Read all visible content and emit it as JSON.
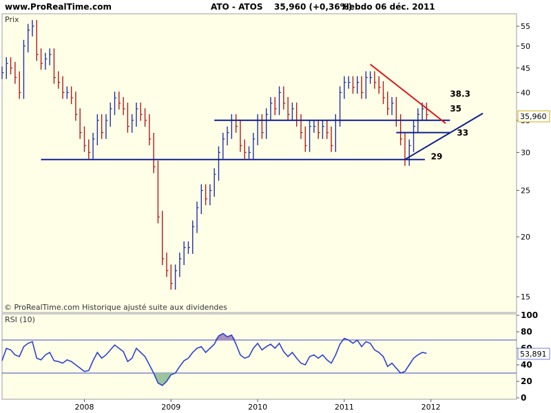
{
  "header": {
    "site": "www.ProRealTime.com",
    "ticker": "ATO - ATOS",
    "price": "35,960 (+0,36%)",
    "period": "Hebdo  06 déc. 2011"
  },
  "price_panel": {
    "label": "Prix",
    "footer": "© ProRealTime.com  Historique ajusté suite aux dividendes",
    "last_value": "35,960"
  },
  "rsi_panel": {
    "label": "RSI (10)",
    "last_value": "53,891"
  },
  "colors": {
    "price_bars": "#1f2fa0",
    "down_bars": "#b01818",
    "support_lines": "#0f1f8a",
    "downtrend": "#e01414",
    "rsi_line": "#2a3fd0",
    "overbought_fill": "#a98fb8",
    "oversold_fill": "#9cc49c",
    "panel_bg": "#ffffe8"
  },
  "chart_data": [
    {
      "type": "bar",
      "scale": "log",
      "ylim": [
        14,
        58
      ],
      "y_ticks": [
        15,
        20,
        25,
        30,
        35,
        40,
        45,
        50,
        55
      ],
      "x_tick_labels": [
        "2008",
        "2009",
        "2010",
        "2011",
        "2012"
      ],
      "x_tick_dates": [
        2008.0,
        2009.0,
        2010.0,
        2011.0,
        2012.0
      ],
      "xlim": [
        2007.05,
        2012.75
      ],
      "series": [
        {
          "points": [
            [
              2007.05,
              44
            ],
            [
              2007.1,
              46
            ],
            [
              2007.15,
              45
            ],
            [
              2007.2,
              43
            ],
            [
              2007.25,
              40
            ],
            [
              2007.3,
              50
            ],
            [
              2007.35,
              54
            ],
            [
              2007.4,
              55
            ],
            [
              2007.45,
              48
            ],
            [
              2007.5,
              46
            ],
            [
              2007.55,
              47
            ],
            [
              2007.6,
              48
            ],
            [
              2007.65,
              43
            ],
            [
              2007.7,
              42
            ],
            [
              2007.75,
              40
            ],
            [
              2007.8,
              40
            ],
            [
              2007.85,
              39
            ],
            [
              2007.9,
              36
            ],
            [
              2007.95,
              33
            ],
            [
              2008.0,
              31
            ],
            [
              2008.05,
              30
            ],
            [
              2008.1,
              32
            ],
            [
              2008.15,
              35
            ],
            [
              2008.2,
              33
            ],
            [
              2008.25,
              35
            ],
            [
              2008.3,
              37
            ],
            [
              2008.35,
              39
            ],
            [
              2008.4,
              38
            ],
            [
              2008.45,
              37
            ],
            [
              2008.5,
              34
            ],
            [
              2008.55,
              35
            ],
            [
              2008.6,
              37
            ],
            [
              2008.65,
              36
            ],
            [
              2008.7,
              35
            ],
            [
              2008.75,
              32
            ],
            [
              2008.8,
              28
            ],
            [
              2008.85,
              22
            ],
            [
              2008.9,
              18
            ],
            [
              2008.95,
              17
            ],
            [
              2009.0,
              16
            ],
            [
              2009.05,
              17
            ],
            [
              2009.1,
              18
            ],
            [
              2009.15,
              19
            ],
            [
              2009.2,
              19
            ],
            [
              2009.25,
              21
            ],
            [
              2009.3,
              23
            ],
            [
              2009.35,
              25
            ],
            [
              2009.4,
              24
            ],
            [
              2009.45,
              25
            ],
            [
              2009.5,
              27
            ],
            [
              2009.55,
              30
            ],
            [
              2009.6,
              32
            ],
            [
              2009.65,
              33
            ],
            [
              2009.7,
              35
            ],
            [
              2009.75,
              34
            ],
            [
              2009.8,
              31
            ],
            [
              2009.85,
              30
            ],
            [
              2009.9,
              30
            ],
            [
              2009.95,
              32
            ],
            [
              2010.0,
              35
            ],
            [
              2010.05,
              33
            ],
            [
              2010.1,
              36
            ],
            [
              2010.15,
              38
            ],
            [
              2010.2,
              37
            ],
            [
              2010.25,
              40
            ],
            [
              2010.3,
              38
            ],
            [
              2010.35,
              36
            ],
            [
              2010.4,
              37
            ],
            [
              2010.45,
              35
            ],
            [
              2010.5,
              33
            ],
            [
              2010.55,
              31
            ],
            [
              2010.6,
              34
            ],
            [
              2010.65,
              34
            ],
            [
              2010.7,
              33
            ],
            [
              2010.75,
              34
            ],
            [
              2010.8,
              33
            ],
            [
              2010.85,
              31
            ],
            [
              2010.9,
              35
            ],
            [
              2010.95,
              40
            ],
            [
              2011.0,
              42
            ],
            [
              2011.05,
              42
            ],
            [
              2011.1,
              41
            ],
            [
              2011.15,
              42
            ],
            [
              2011.2,
              40
            ],
            [
              2011.25,
              43
            ],
            [
              2011.3,
              43
            ],
            [
              2011.35,
              42
            ],
            [
              2011.4,
              41
            ],
            [
              2011.45,
              39
            ],
            [
              2011.5,
              37
            ],
            [
              2011.55,
              38
            ],
            [
              2011.6,
              35
            ],
            [
              2011.65,
              32
            ],
            [
              2011.7,
              29
            ],
            [
              2011.75,
              31
            ],
            [
              2011.8,
              34
            ],
            [
              2011.85,
              36
            ],
            [
              2011.9,
              37
            ],
            [
              2011.95,
              35.96
            ]
          ]
        }
      ],
      "annotations": [
        {
          "text": "38.3",
          "x": 2012.22,
          "y": 39.2
        },
        {
          "text": "35",
          "x": 2012.22,
          "y": 36.5
        },
        {
          "text": "33",
          "x": 2012.3,
          "y": 32.5
        },
        {
          "text": "29",
          "x": 2012.0,
          "y": 29.0
        }
      ],
      "lines": [
        {
          "name": "support-35",
          "x1": 2009.5,
          "y1": 35,
          "x2": 2012.22,
          "y2": 35,
          "color": "#0f1f8a"
        },
        {
          "name": "support-33",
          "x1": 2011.6,
          "y1": 33,
          "x2": 2012.22,
          "y2": 33,
          "color": "#0f1f8a"
        },
        {
          "name": "support-29",
          "x1": 2007.5,
          "y1": 29,
          "x2": 2011.93,
          "y2": 29,
          "color": "#0f1f8a"
        },
        {
          "name": "uptrend",
          "x1": 2011.7,
          "y1": 29,
          "x2": 2012.6,
          "y2": 36.2,
          "color": "#0f1f8a"
        },
        {
          "name": "downtrend",
          "x1": 2011.3,
          "y1": 45.8,
          "x2": 2012.17,
          "y2": 34.5,
          "color": "#e01414"
        }
      ]
    },
    {
      "type": "line",
      "title": "RSI (10)",
      "ylim": [
        0,
        100
      ],
      "y_ticks": [
        0,
        20,
        40,
        60,
        80,
        100
      ],
      "overbought": 70,
      "oversold": 30,
      "values": [
        [
          2007.05,
          45
        ],
        [
          2007.1,
          60
        ],
        [
          2007.15,
          58
        ],
        [
          2007.2,
          52
        ],
        [
          2007.25,
          50
        ],
        [
          2007.3,
          62
        ],
        [
          2007.35,
          66
        ],
        [
          2007.4,
          68
        ],
        [
          2007.45,
          48
        ],
        [
          2007.5,
          46
        ],
        [
          2007.55,
          52
        ],
        [
          2007.6,
          55
        ],
        [
          2007.65,
          45
        ],
        [
          2007.7,
          44
        ],
        [
          2007.75,
          42
        ],
        [
          2007.8,
          46
        ],
        [
          2007.85,
          44
        ],
        [
          2007.9,
          40
        ],
        [
          2007.95,
          36
        ],
        [
          2008.0,
          32
        ],
        [
          2008.05,
          33
        ],
        [
          2008.1,
          45
        ],
        [
          2008.15,
          55
        ],
        [
          2008.2,
          48
        ],
        [
          2008.25,
          52
        ],
        [
          2008.3,
          58
        ],
        [
          2008.35,
          64
        ],
        [
          2008.4,
          60
        ],
        [
          2008.45,
          56
        ],
        [
          2008.5,
          44
        ],
        [
          2008.55,
          48
        ],
        [
          2008.6,
          60
        ],
        [
          2008.65,
          55
        ],
        [
          2008.7,
          50
        ],
        [
          2008.75,
          40
        ],
        [
          2008.8,
          30
        ],
        [
          2008.85,
          18
        ],
        [
          2008.9,
          15
        ],
        [
          2008.95,
          20
        ],
        [
          2009.0,
          28
        ],
        [
          2009.05,
          30
        ],
        [
          2009.1,
          38
        ],
        [
          2009.15,
          45
        ],
        [
          2009.2,
          48
        ],
        [
          2009.25,
          55
        ],
        [
          2009.3,
          60
        ],
        [
          2009.35,
          62
        ],
        [
          2009.4,
          55
        ],
        [
          2009.45,
          60
        ],
        [
          2009.5,
          65
        ],
        [
          2009.55,
          75
        ],
        [
          2009.6,
          78
        ],
        [
          2009.65,
          74
        ],
        [
          2009.7,
          76
        ],
        [
          2009.75,
          65
        ],
        [
          2009.8,
          52
        ],
        [
          2009.85,
          48
        ],
        [
          2009.9,
          50
        ],
        [
          2009.95,
          60
        ],
        [
          2010.0,
          66
        ],
        [
          2010.05,
          58
        ],
        [
          2010.1,
          62
        ],
        [
          2010.15,
          65
        ],
        [
          2010.2,
          60
        ],
        [
          2010.25,
          66
        ],
        [
          2010.3,
          56
        ],
        [
          2010.35,
          50
        ],
        [
          2010.4,
          55
        ],
        [
          2010.45,
          48
        ],
        [
          2010.5,
          42
        ],
        [
          2010.55,
          40
        ],
        [
          2010.6,
          50
        ],
        [
          2010.65,
          52
        ],
        [
          2010.7,
          48
        ],
        [
          2010.75,
          52
        ],
        [
          2010.8,
          46
        ],
        [
          2010.85,
          42
        ],
        [
          2010.9,
          52
        ],
        [
          2010.95,
          65
        ],
        [
          2011.0,
          72
        ],
        [
          2011.05,
          70
        ],
        [
          2011.1,
          66
        ],
        [
          2011.15,
          70
        ],
        [
          2011.2,
          62
        ],
        [
          2011.25,
          68
        ],
        [
          2011.3,
          66
        ],
        [
          2011.35,
          58
        ],
        [
          2011.4,
          55
        ],
        [
          2011.45,
          50
        ],
        [
          2011.5,
          38
        ],
        [
          2011.55,
          42
        ],
        [
          2011.6,
          36
        ],
        [
          2011.65,
          30
        ],
        [
          2011.7,
          32
        ],
        [
          2011.75,
          40
        ],
        [
          2011.8,
          48
        ],
        [
          2011.85,
          52
        ],
        [
          2011.9,
          55
        ],
        [
          2011.95,
          53.891
        ]
      ]
    }
  ]
}
